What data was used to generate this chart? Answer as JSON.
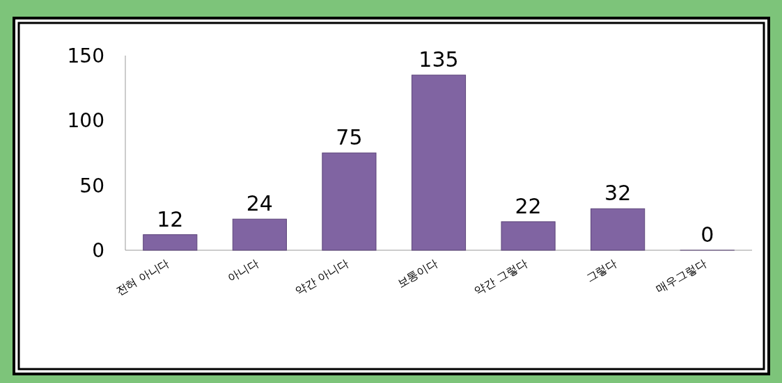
{
  "chart_data": {
    "type": "bar",
    "categories": [
      "전혀 아니다",
      "아니다",
      "약간 아니다",
      "보통이다",
      "약간 그렇다",
      "그렇다",
      "매우그렇다"
    ],
    "values": [
      12,
      24,
      75,
      135,
      22,
      32,
      0
    ],
    "color": "#8064a2",
    "ylim": [
      0,
      150
    ],
    "yticks": [
      0,
      50,
      100,
      150
    ],
    "data_labels": true,
    "grid": false
  }
}
